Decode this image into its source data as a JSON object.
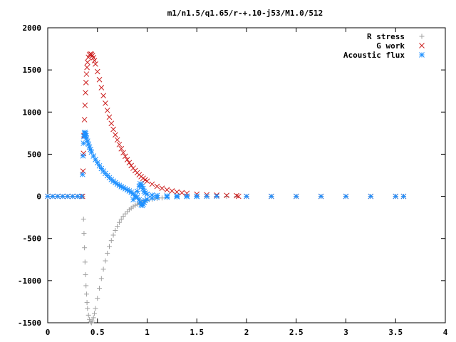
{
  "chart_data": {
    "type": "scatter",
    "title": "m1/n1.5/q1.65/r-+.10-j53/M1.0/512",
    "xlabel": "",
    "ylabel": "",
    "xlim": [
      0,
      4
    ],
    "ylim": [
      -1500,
      2000
    ],
    "xticks": [
      0,
      0.5,
      1,
      1.5,
      2,
      2.5,
      3,
      3.5,
      4
    ],
    "yticks": [
      -1500,
      -1000,
      -500,
      0,
      500,
      1000,
      1500,
      2000
    ],
    "xtick_labels": [
      "0",
      "0.5",
      "1",
      "1.5",
      "2",
      "2.5",
      "3",
      "3.5",
      "4"
    ],
    "ytick_labels": [
      "-1500",
      "-1000",
      "-500",
      "0",
      "500",
      "1000",
      "1500",
      "2000"
    ],
    "grid": false,
    "legend_position": "top-right",
    "series": [
      {
        "name": "R stress",
        "marker": "plus",
        "color": "#a0a0a0",
        "points": [
          [
            0.0,
            0
          ],
          [
            0.05,
            0
          ],
          [
            0.1,
            0
          ],
          [
            0.15,
            0
          ],
          [
            0.2,
            0
          ],
          [
            0.25,
            0
          ],
          [
            0.3,
            0
          ],
          [
            0.35,
            0
          ],
          [
            0.36,
            -270
          ],
          [
            0.365,
            -440
          ],
          [
            0.37,
            -610
          ],
          [
            0.375,
            -780
          ],
          [
            0.38,
            -930
          ],
          [
            0.385,
            -1060
          ],
          [
            0.39,
            -1160
          ],
          [
            0.395,
            -1260
          ],
          [
            0.4,
            -1330
          ],
          [
            0.41,
            -1410
          ],
          [
            0.42,
            -1460
          ],
          [
            0.43,
            -1490
          ],
          [
            0.44,
            -1500
          ],
          [
            0.45,
            -1480
          ],
          [
            0.46,
            -1440
          ],
          [
            0.47,
            -1390
          ],
          [
            0.48,
            -1330
          ],
          [
            0.5,
            -1210
          ],
          [
            0.52,
            -1090
          ],
          [
            0.54,
            -975
          ],
          [
            0.56,
            -865
          ],
          [
            0.58,
            -765
          ],
          [
            0.6,
            -675
          ],
          [
            0.62,
            -595
          ],
          [
            0.64,
            -525
          ],
          [
            0.66,
            -460
          ],
          [
            0.68,
            -405
          ],
          [
            0.7,
            -355
          ],
          [
            0.72,
            -310
          ],
          [
            0.74,
            -272
          ],
          [
            0.76,
            -238
          ],
          [
            0.78,
            -208
          ],
          [
            0.8,
            -182
          ],
          [
            0.82,
            -160
          ],
          [
            0.84,
            -140
          ],
          [
            0.86,
            -122
          ],
          [
            0.88,
            -107
          ],
          [
            0.9,
            -94
          ],
          [
            0.92,
            -82
          ],
          [
            0.94,
            -72
          ],
          [
            0.96,
            -63
          ],
          [
            0.98,
            -55
          ],
          [
            1.0,
            -48
          ],
          [
            1.05,
            -35
          ],
          [
            1.1,
            -26
          ],
          [
            1.15,
            -19
          ],
          [
            1.2,
            -14
          ],
          [
            1.3,
            -8
          ],
          [
            1.4,
            -5
          ],
          [
            1.5,
            -3
          ],
          [
            1.6,
            -2
          ],
          [
            1.7,
            -1
          ],
          [
            1.8,
            0
          ],
          [
            1.9,
            0
          ],
          [
            2.0,
            0
          ],
          [
            2.25,
            0
          ],
          [
            2.5,
            0
          ],
          [
            2.75,
            0
          ],
          [
            3.0,
            0
          ],
          [
            3.25,
            0
          ],
          [
            3.5,
            0
          ],
          [
            3.58,
            0
          ]
        ]
      },
      {
        "name": "G work",
        "marker": "cross",
        "color": "#cc2020",
        "points": [
          [
            0.0,
            0
          ],
          [
            0.05,
            0
          ],
          [
            0.1,
            0
          ],
          [
            0.15,
            0
          ],
          [
            0.2,
            0
          ],
          [
            0.25,
            0
          ],
          [
            0.3,
            0
          ],
          [
            0.35,
            0
          ],
          [
            0.355,
            300
          ],
          [
            0.36,
            510
          ],
          [
            0.365,
            720
          ],
          [
            0.37,
            910
          ],
          [
            0.375,
            1080
          ],
          [
            0.38,
            1230
          ],
          [
            0.385,
            1350
          ],
          [
            0.39,
            1450
          ],
          [
            0.395,
            1530
          ],
          [
            0.4,
            1590
          ],
          [
            0.41,
            1650
          ],
          [
            0.42,
            1680
          ],
          [
            0.43,
            1690
          ],
          [
            0.44,
            1685
          ],
          [
            0.45,
            1670
          ],
          [
            0.46,
            1645
          ],
          [
            0.47,
            1610
          ],
          [
            0.48,
            1570
          ],
          [
            0.5,
            1480
          ],
          [
            0.52,
            1385
          ],
          [
            0.54,
            1290
          ],
          [
            0.56,
            1195
          ],
          [
            0.58,
            1105
          ],
          [
            0.6,
            1020
          ],
          [
            0.62,
            940
          ],
          [
            0.64,
            865
          ],
          [
            0.66,
            795
          ],
          [
            0.68,
            730
          ],
          [
            0.7,
            670
          ],
          [
            0.72,
            615
          ],
          [
            0.74,
            565
          ],
          [
            0.76,
            518
          ],
          [
            0.78,
            475
          ],
          [
            0.8,
            435
          ],
          [
            0.82,
            399
          ],
          [
            0.84,
            365
          ],
          [
            0.86,
            334
          ],
          [
            0.88,
            306
          ],
          [
            0.9,
            280
          ],
          [
            0.92,
            256
          ],
          [
            0.94,
            234
          ],
          [
            0.96,
            214
          ],
          [
            0.98,
            196
          ],
          [
            1.0,
            180
          ],
          [
            1.05,
            145
          ],
          [
            1.1,
            118
          ],
          [
            1.15,
            96
          ],
          [
            1.2,
            78
          ],
          [
            1.25,
            64
          ],
          [
            1.3,
            52
          ],
          [
            1.35,
            43
          ],
          [
            1.4,
            36
          ],
          [
            1.5,
            26
          ],
          [
            1.6,
            19
          ],
          [
            1.7,
            14
          ],
          [
            1.8,
            11
          ],
          [
            1.9,
            8
          ],
          [
            1.92,
            0
          ],
          [
            2.0,
            0
          ],
          [
            2.25,
            0
          ],
          [
            2.5,
            0
          ],
          [
            2.75,
            0
          ],
          [
            3.0,
            0
          ],
          [
            3.25,
            0
          ],
          [
            3.5,
            0
          ],
          [
            3.58,
            0
          ]
        ]
      },
      {
        "name": "Acoustic flux",
        "marker": "star",
        "color": "#1e90ff",
        "points": [
          [
            0.0,
            0
          ],
          [
            0.05,
            0
          ],
          [
            0.1,
            0
          ],
          [
            0.15,
            0
          ],
          [
            0.2,
            0
          ],
          [
            0.25,
            0
          ],
          [
            0.3,
            0
          ],
          [
            0.34,
            0
          ],
          [
            0.35,
            260
          ],
          [
            0.355,
            480
          ],
          [
            0.36,
            630
          ],
          [
            0.365,
            710
          ],
          [
            0.37,
            750
          ],
          [
            0.375,
            760
          ],
          [
            0.38,
            745
          ],
          [
            0.385,
            720
          ],
          [
            0.39,
            690
          ],
          [
            0.4,
            655
          ],
          [
            0.41,
            620
          ],
          [
            0.42,
            585
          ],
          [
            0.43,
            555
          ],
          [
            0.44,
            525
          ],
          [
            0.46,
            478
          ],
          [
            0.48,
            436
          ],
          [
            0.5,
            398
          ],
          [
            0.52,
            362
          ],
          [
            0.54,
            330
          ],
          [
            0.56,
            300
          ],
          [
            0.58,
            272
          ],
          [
            0.6,
            246
          ],
          [
            0.62,
            222
          ],
          [
            0.64,
            200
          ],
          [
            0.66,
            180
          ],
          [
            0.68,
            162
          ],
          [
            0.7,
            145
          ],
          [
            0.72,
            130
          ],
          [
            0.74,
            116
          ],
          [
            0.76,
            103
          ],
          [
            0.78,
            90
          ],
          [
            0.8,
            77
          ],
          [
            0.82,
            64
          ],
          [
            0.84,
            48
          ],
          [
            0.86,
            30
          ],
          [
            0.88,
            10
          ],
          [
            0.9,
            -10
          ],
          [
            0.92,
            -40
          ],
          [
            0.93,
            -70
          ],
          [
            0.94,
            -100
          ],
          [
            0.95,
            -110
          ],
          [
            0.96,
            -95
          ],
          [
            0.97,
            -70
          ],
          [
            0.98,
            -50
          ],
          [
            1.0,
            -35
          ],
          [
            1.05,
            -22
          ],
          [
            1.1,
            -15
          ],
          [
            1.2,
            -8
          ],
          [
            1.3,
            -4
          ],
          [
            1.4,
            -2
          ],
          [
            1.5,
            -1
          ],
          [
            1.6,
            0
          ],
          [
            0.86,
            -40
          ],
          [
            0.88,
            -10
          ],
          [
            0.9,
            60
          ],
          [
            0.92,
            120
          ],
          [
            0.93,
            150
          ],
          [
            0.94,
            140
          ],
          [
            0.95,
            120
          ],
          [
            0.96,
            90
          ],
          [
            0.97,
            60
          ],
          [
            0.98,
            40
          ],
          [
            1.0,
            25
          ],
          [
            1.05,
            15
          ],
          [
            1.1,
            10
          ],
          [
            1.2,
            6
          ],
          [
            1.3,
            4
          ],
          [
            1.4,
            3
          ],
          [
            1.5,
            2
          ],
          [
            1.7,
            1
          ],
          [
            2.0,
            0
          ],
          [
            2.25,
            0
          ],
          [
            2.5,
            0
          ],
          [
            2.75,
            0
          ],
          [
            3.0,
            0
          ],
          [
            3.25,
            0
          ],
          [
            3.5,
            0
          ],
          [
            3.58,
            0
          ]
        ]
      }
    ]
  }
}
